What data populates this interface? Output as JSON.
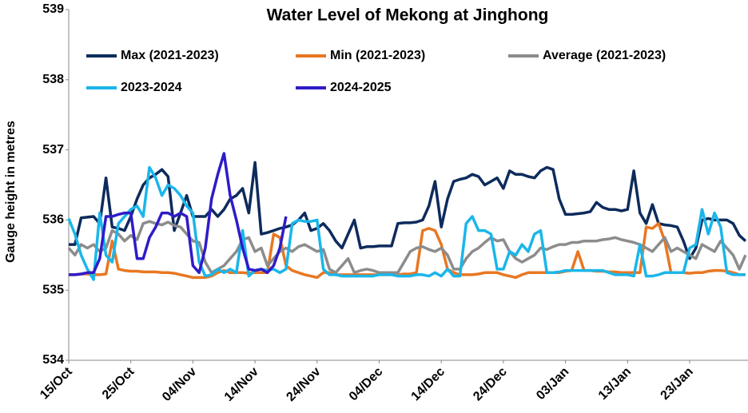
{
  "chart_data": {
    "type": "line",
    "title": "Water Level of Mekong at Jinghong",
    "y_label": "Gauge height in metres",
    "ylim": [
      534,
      539
    ],
    "yticks": [
      534,
      535,
      536,
      537,
      538,
      539
    ],
    "grid": false,
    "legend": "top",
    "categories": [
      "15/Oct",
      null,
      null,
      null,
      null,
      null,
      null,
      null,
      null,
      null,
      "25/Oct",
      null,
      null,
      null,
      null,
      null,
      null,
      null,
      null,
      null,
      "04/Nov",
      null,
      null,
      null,
      null,
      null,
      null,
      null,
      null,
      null,
      "14/Nov",
      null,
      null,
      null,
      null,
      null,
      null,
      null,
      null,
      null,
      "24/Nov",
      null,
      null,
      null,
      null,
      null,
      null,
      null,
      null,
      null,
      "04/Dec",
      null,
      null,
      null,
      null,
      null,
      null,
      null,
      null,
      null,
      "14/Dec",
      null,
      null,
      null,
      null,
      null,
      null,
      null,
      null,
      null,
      "24/Dec",
      null,
      null,
      null,
      null,
      null,
      null,
      null,
      null,
      null,
      "03/Jan",
      null,
      null,
      null,
      null,
      null,
      null,
      null,
      null,
      null,
      "13/Jan",
      null,
      null,
      null,
      null,
      null,
      null,
      null,
      null,
      null,
      "23/Jan",
      null,
      null,
      null,
      null,
      null,
      null,
      null,
      null,
      null
    ],
    "series": [
      {
        "name": "Max (2021-2023)",
        "color": "#0d2b5c",
        "values": [
          535.65,
          535.65,
          536.03,
          536.04,
          536.05,
          535.95,
          536.6,
          535.9,
          535.88,
          535.85,
          536.05,
          536.3,
          536.5,
          536.6,
          536.65,
          536.72,
          536.62,
          535.85,
          536.1,
          536.35,
          536.05,
          536.05,
          536.05,
          536.15,
          536.05,
          536.15,
          536.3,
          536.35,
          536.45,
          536.1,
          536.82,
          535.8,
          535.82,
          535.85,
          535.88,
          535.9,
          535.93,
          536.0,
          536.1,
          535.85,
          535.88,
          535.95,
          535.85,
          535.7,
          535.6,
          535.8,
          536.0,
          535.6,
          535.62,
          535.62,
          535.63,
          535.63,
          535.63,
          535.95,
          535.96,
          535.96,
          535.97,
          536.0,
          536.2,
          536.55,
          535.9,
          536.3,
          536.55,
          536.58,
          536.6,
          536.65,
          536.62,
          536.5,
          536.55,
          536.6,
          536.45,
          536.7,
          536.65,
          536.65,
          536.62,
          536.6,
          536.7,
          536.75,
          536.72,
          536.3,
          536.08,
          536.08,
          536.09,
          536.1,
          536.12,
          536.25,
          536.18,
          536.15,
          536.15,
          536.13,
          536.15,
          536.7,
          536.1,
          535.95,
          536.22,
          535.95,
          535.93,
          535.92,
          535.9,
          535.7,
          535.45,
          535.6,
          536.0,
          536.02,
          536.0,
          536.0,
          536.0,
          535.95,
          535.78,
          535.7
        ]
      },
      {
        "name": "Min (2021-2023)",
        "color": "#e87722",
        "values": [
          535.22,
          535.22,
          535.23,
          535.23,
          535.22,
          535.22,
          535.23,
          535.7,
          535.3,
          535.28,
          535.27,
          535.27,
          535.26,
          535.26,
          535.26,
          535.25,
          535.25,
          535.24,
          535.22,
          535.2,
          535.18,
          535.18,
          535.18,
          535.2,
          535.25,
          535.28,
          535.25,
          535.25,
          535.25,
          535.24,
          535.25,
          535.25,
          535.25,
          535.8,
          535.75,
          535.35,
          535.28,
          535.25,
          535.22,
          535.2,
          535.18,
          535.25,
          535.25,
          535.22,
          535.22,
          535.22,
          535.22,
          535.22,
          535.22,
          535.22,
          535.22,
          535.22,
          535.22,
          535.22,
          535.23,
          535.23,
          535.25,
          535.85,
          535.88,
          535.85,
          535.65,
          535.3,
          535.25,
          535.22,
          535.22,
          535.22,
          535.23,
          535.25,
          535.25,
          535.25,
          535.22,
          535.2,
          535.18,
          535.22,
          535.25,
          535.25,
          535.25,
          535.25,
          535.25,
          535.25,
          535.27,
          535.28,
          535.55,
          535.28,
          535.28,
          535.27,
          535.27,
          535.26,
          535.26,
          535.25,
          535.25,
          535.25,
          535.25,
          535.9,
          535.88,
          535.95,
          535.7,
          535.25,
          535.25,
          535.25,
          535.24,
          535.25,
          535.25,
          535.27,
          535.28,
          535.28,
          535.27,
          535.25,
          535.22,
          535.22
        ]
      },
      {
        "name": "Average (2021-2023)",
        "color": "#8c8c8c",
        "values": [
          535.6,
          535.5,
          535.65,
          535.6,
          535.65,
          535.55,
          535.6,
          535.85,
          535.8,
          535.7,
          535.78,
          535.72,
          535.95,
          535.98,
          535.95,
          535.93,
          535.97,
          535.92,
          535.9,
          535.8,
          535.7,
          535.68,
          535.4,
          535.25,
          535.3,
          535.35,
          535.45,
          535.55,
          535.72,
          535.75,
          535.55,
          535.6,
          535.35,
          535.45,
          535.55,
          535.6,
          535.55,
          535.62,
          535.65,
          535.6,
          535.55,
          535.58,
          535.3,
          535.25,
          535.35,
          535.45,
          535.25,
          535.28,
          535.3,
          535.28,
          535.25,
          535.25,
          535.25,
          535.25,
          535.4,
          535.55,
          535.6,
          535.62,
          535.58,
          535.55,
          535.6,
          535.5,
          535.3,
          535.3,
          535.45,
          535.55,
          535.6,
          535.68,
          535.75,
          535.7,
          535.72,
          535.55,
          535.45,
          535.4,
          535.45,
          535.5,
          535.6,
          535.58,
          535.62,
          535.65,
          535.65,
          535.68,
          535.68,
          535.7,
          535.7,
          535.7,
          535.72,
          535.73,
          535.75,
          535.72,
          535.7,
          535.68,
          535.65,
          535.6,
          535.55,
          535.65,
          535.75,
          535.55,
          535.6,
          535.55,
          535.5,
          535.45,
          535.65,
          535.6,
          535.55,
          535.7,
          535.6,
          535.5,
          535.3,
          535.5
        ]
      },
      {
        "name": "2023-2024",
        "color": "#1ab6ea",
        "values": [
          536.02,
          535.8,
          535.5,
          535.3,
          535.15,
          536.1,
          535.5,
          535.4,
          535.95,
          536.05,
          536.15,
          536.2,
          536.05,
          536.75,
          536.6,
          536.35,
          536.5,
          536.45,
          536.35,
          536.2,
          536.1,
          535.4,
          535.2,
          535.22,
          535.3,
          535.25,
          535.3,
          535.25,
          535.85,
          535.2,
          535.28,
          535.3,
          535.28,
          535.3,
          535.25,
          535.3,
          535.95,
          536.0,
          535.98,
          535.98,
          536.0,
          535.3,
          535.22,
          535.22,
          535.2,
          535.2,
          535.2,
          535.2,
          535.2,
          535.2,
          535.22,
          535.22,
          535.22,
          535.2,
          535.2,
          535.2,
          535.22,
          535.22,
          535.2,
          535.25,
          535.2,
          535.3,
          535.2,
          535.2,
          535.95,
          536.05,
          535.85,
          535.85,
          535.8,
          535.3,
          535.3,
          535.55,
          535.5,
          535.65,
          535.55,
          535.8,
          535.85,
          535.25,
          535.25,
          535.26,
          535.28,
          535.28,
          535.28,
          535.28,
          535.28,
          535.28,
          535.28,
          535.25,
          535.22,
          535.22,
          535.22,
          535.2,
          535.65,
          535.2,
          535.2,
          535.22,
          535.25,
          535.25,
          535.25,
          535.25,
          535.6,
          535.65,
          536.15,
          535.8,
          536.1,
          535.9,
          535.25,
          535.22,
          535.22,
          535.22
        ]
      },
      {
        "name": "2024-2025",
        "color": "#2e1cc8",
        "values": [
          535.22,
          535.22,
          535.23,
          535.25,
          535.25,
          535.45,
          536.05,
          536.05,
          536.08,
          536.1,
          536.1,
          535.45,
          535.45,
          535.75,
          535.9,
          536.1,
          536.1,
          536.05,
          536.1,
          536.05,
          535.35,
          535.25,
          535.6,
          536.3,
          536.65,
          536.95,
          536.35,
          536.0,
          535.6,
          535.3,
          535.28,
          535.3,
          535.25,
          535.35,
          535.6,
          536.05,
          null,
          null,
          null,
          null,
          null,
          null,
          null,
          null,
          null,
          null,
          null,
          null,
          null,
          null,
          null,
          null,
          null,
          null,
          null,
          null,
          null,
          null,
          null,
          null,
          null,
          null,
          null,
          null,
          null,
          null,
          null,
          null,
          null,
          null,
          null,
          null,
          null,
          null,
          null,
          null,
          null,
          null,
          null,
          null,
          null,
          null,
          null,
          null,
          null,
          null,
          null,
          null,
          null,
          null,
          null,
          null,
          null,
          null,
          null,
          null,
          null,
          null,
          null,
          null,
          null,
          null,
          null,
          null,
          null,
          null,
          null,
          null,
          null,
          null
        ]
      }
    ]
  }
}
